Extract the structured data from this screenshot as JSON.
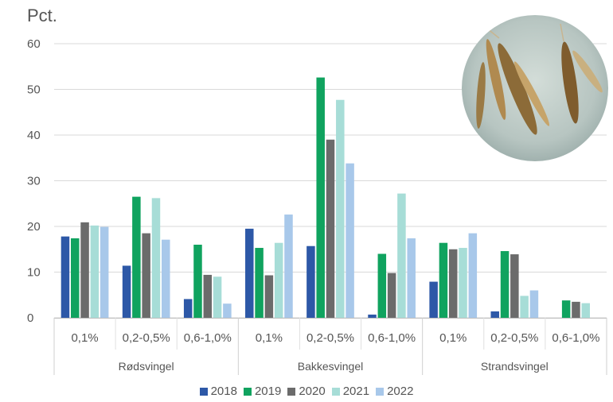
{
  "chart_data": {
    "type": "bar",
    "ylabel": "Pct.",
    "ylim": [
      0,
      60
    ],
    "yticks": [
      0,
      10,
      20,
      30,
      40,
      50,
      60
    ],
    "grid": true,
    "legend_position": "bottom",
    "series": [
      {
        "name": "2018",
        "color": "#2d58a7"
      },
      {
        "name": "2019",
        "color": "#10a35f"
      },
      {
        "name": "2020",
        "color": "#6b6b6b"
      },
      {
        "name": "2021",
        "color": "#a7ddd7"
      },
      {
        "name": "2022",
        "color": "#a8c8ea"
      }
    ],
    "groups": [
      {
        "name": "Rødsvingel",
        "categories": [
          {
            "label": "0,1%",
            "values": [
              17.8,
              17.4,
              20.9,
              20.2,
              19.9
            ]
          },
          {
            "label": "0,2-0,5%",
            "values": [
              11.4,
              26.5,
              18.5,
              26.2,
              17.1
            ]
          },
          {
            "label": "0,6-1,0%",
            "values": [
              4.1,
              16.0,
              9.4,
              9.0,
              3.1
            ]
          }
        ]
      },
      {
        "name": "Bakkesvingel",
        "categories": [
          {
            "label": "0,1%",
            "values": [
              19.5,
              15.3,
              9.3,
              16.4,
              22.6
            ]
          },
          {
            "label": "0,2-0,5%",
            "values": [
              15.7,
              52.6,
              39.0,
              47.7,
              33.8
            ]
          },
          {
            "label": "0,6-1,0%",
            "values": [
              0.7,
              14.0,
              9.8,
              27.2,
              17.4
            ]
          }
        ]
      },
      {
        "name": "Strandsvingel",
        "categories": [
          {
            "label": "0,1%",
            "values": [
              7.9,
              16.4,
              15.0,
              15.3,
              18.5
            ]
          },
          {
            "label": "0,2-0,5%",
            "values": [
              1.4,
              14.6,
              13.9,
              4.8,
              6.0
            ]
          },
          {
            "label": "0,6-1,0%",
            "values": [
              null,
              3.8,
              3.5,
              3.2,
              null
            ]
          }
        ]
      }
    ]
  }
}
